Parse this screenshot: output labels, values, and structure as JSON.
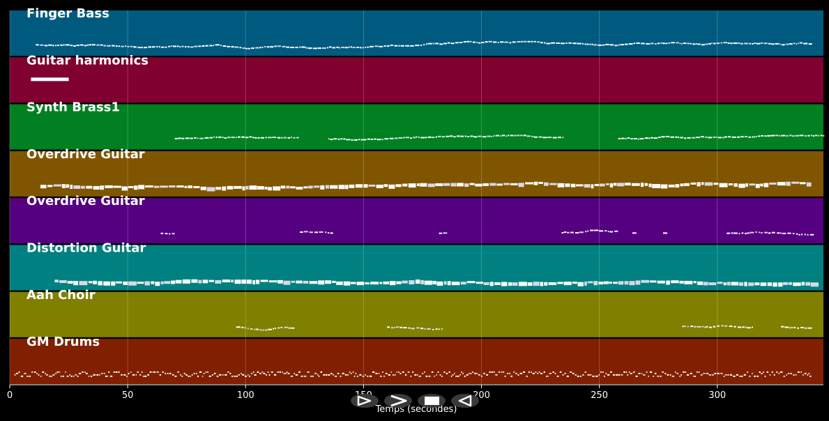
{
  "chart_data": {
    "type": "piano-roll",
    "xlabel": "Temps (secondes)",
    "xlim": [
      0,
      345
    ],
    "xticks": [
      0,
      50,
      100,
      150,
      200,
      250,
      300
    ],
    "grid": true,
    "tracks": [
      {
        "name": "Finger Bass",
        "color": "#005a80",
        "start": 11,
        "end": 340,
        "style": "dense"
      },
      {
        "name": "Guitar harmonics",
        "color": "#800030",
        "start": 9,
        "end": 25,
        "style": "bar"
      },
      {
        "name": "Synth Brass1",
        "color": "#008020",
        "segments": [
          [
            70,
            122
          ],
          [
            135,
            235
          ],
          [
            258,
            345
          ]
        ],
        "style": "dense"
      },
      {
        "name": "Overdrive Guitar",
        "color": "#805500",
        "start": 13,
        "end": 340,
        "style": "thick"
      },
      {
        "name": "Overdrive Guitar",
        "color": "#550080",
        "segments": [
          [
            64,
            70
          ],
          [
            123,
            137
          ],
          [
            182,
            184
          ],
          [
            234,
            258
          ],
          [
            264,
            266
          ],
          [
            277,
            279
          ],
          [
            304,
            340
          ]
        ],
        "style": "sparse"
      },
      {
        "name": "Distortion Guitar",
        "color": "#008080",
        "start": 19,
        "end": 340,
        "style": "thick"
      },
      {
        "name": "Aah Choir",
        "color": "#808000",
        "segments": [
          [
            96,
            120
          ],
          [
            160,
            184
          ],
          [
            285,
            315
          ],
          [
            327,
            340
          ]
        ],
        "style": "sparse"
      },
      {
        "name": "GM Drums",
        "color": "#802000",
        "start": 2,
        "end": 340,
        "style": "drums"
      }
    ]
  },
  "controls": {
    "play": "play-icon",
    "fast_forward": "fast-forward-icon",
    "stop": "stop-icon",
    "rewind": "rewind-icon"
  }
}
